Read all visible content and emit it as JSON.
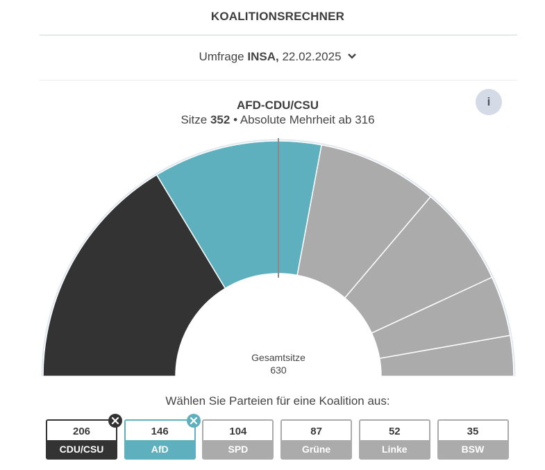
{
  "header": {
    "title": "KOALITIONSRECHNER",
    "poll_prefix": "Umfrage",
    "poll_institute": "INSA,",
    "poll_date": "22.02.2025",
    "info_label": "i"
  },
  "coalition": {
    "name": "AFD-CDU/CSU",
    "seats_label": "Sitze",
    "seats": "352",
    "majority_text": "• Absolute Mehrheit ab 316"
  },
  "center": {
    "label": "Gesamtsitze",
    "total": "630"
  },
  "choose_text": "Wählen Sie Parteien für eine Koalition aus:",
  "chart_data": {
    "type": "pie",
    "title": "AFD-CDU/CSU",
    "total": 630,
    "majority": 316,
    "slices": [
      {
        "name": "CDU/CSU",
        "value": 206,
        "selected": true,
        "color": "#333333"
      },
      {
        "name": "AfD",
        "value": 146,
        "selected": true,
        "color": "#5eb0bf"
      },
      {
        "name": "SPD",
        "value": 104,
        "selected": false,
        "color": "#ababab"
      },
      {
        "name": "Grüne",
        "value": 87,
        "selected": false,
        "color": "#ababab"
      },
      {
        "name": "Linke",
        "value": 52,
        "selected": false,
        "color": "#ababab"
      },
      {
        "name": "BSW",
        "value": 35,
        "selected": false,
        "color": "#ababab"
      }
    ]
  },
  "parties": [
    {
      "name": "CDU/CSU",
      "seats": "206",
      "selected": true,
      "color": "#333333",
      "remove_color": "#333333"
    },
    {
      "name": "AfD",
      "seats": "146",
      "selected": true,
      "color": "#5eb0bf",
      "remove_color": "#5eb0bf"
    },
    {
      "name": "SPD",
      "seats": "104",
      "selected": false,
      "color": "#ababab"
    },
    {
      "name": "Grüne",
      "seats": "87",
      "selected": false,
      "color": "#ababab"
    },
    {
      "name": "Linke",
      "seats": "52",
      "selected": false,
      "color": "#ababab"
    },
    {
      "name": "BSW",
      "seats": "35",
      "selected": false,
      "color": "#ababab"
    }
  ]
}
